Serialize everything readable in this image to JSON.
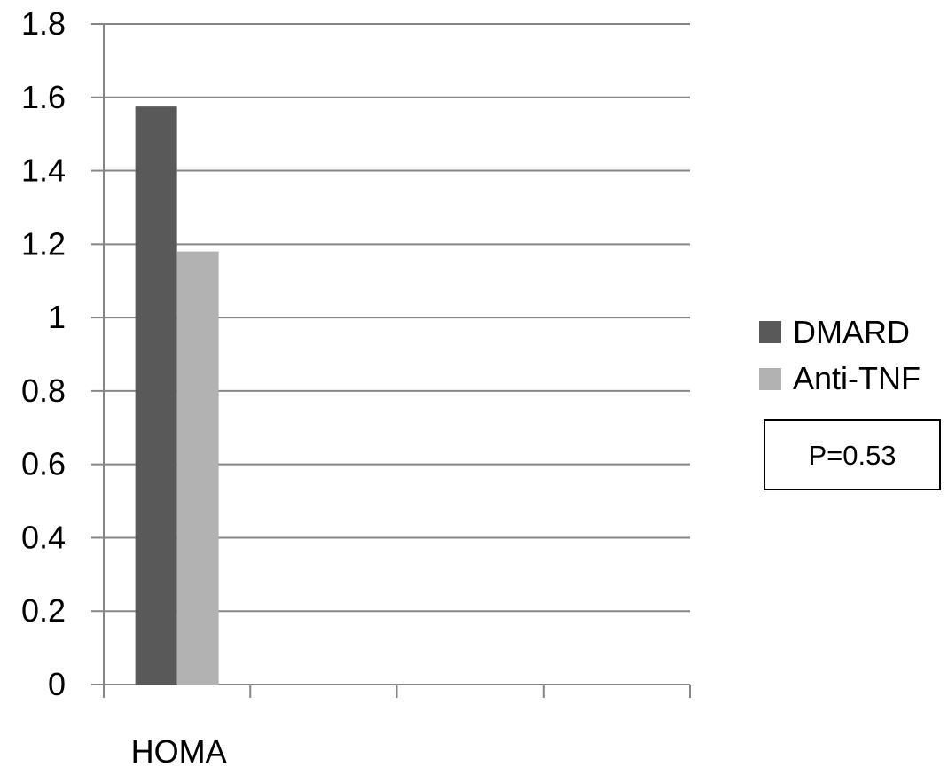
{
  "chart_data": {
    "type": "bar",
    "title": "",
    "xlabel": "",
    "ylabel": "",
    "categories": [
      "HOMA",
      "",
      "",
      ""
    ],
    "series": [
      {
        "name": "DMARD",
        "values": [
          1.575,
          null,
          null,
          null
        ],
        "color": "#595959"
      },
      {
        "name": "Anti-TNF",
        "values": [
          1.18,
          null,
          null,
          null
        ],
        "color": "#b2b2b2"
      }
    ],
    "ylim": [
      0,
      1.8
    ],
    "yticks": [
      0,
      0.2,
      0.4,
      0.6,
      0.8,
      1,
      1.2,
      1.4,
      1.6,
      1.8
    ],
    "ytick_labels": [
      "0",
      "0.2",
      "0.4",
      "0.6",
      "0.8",
      "1",
      "1.2",
      "1.4",
      "1.6",
      "1.8"
    ],
    "grid": true,
    "legend_position": "right",
    "annotation": "P=0.53",
    "colors": {
      "axis": "#868686",
      "grid": "#868686"
    }
  }
}
